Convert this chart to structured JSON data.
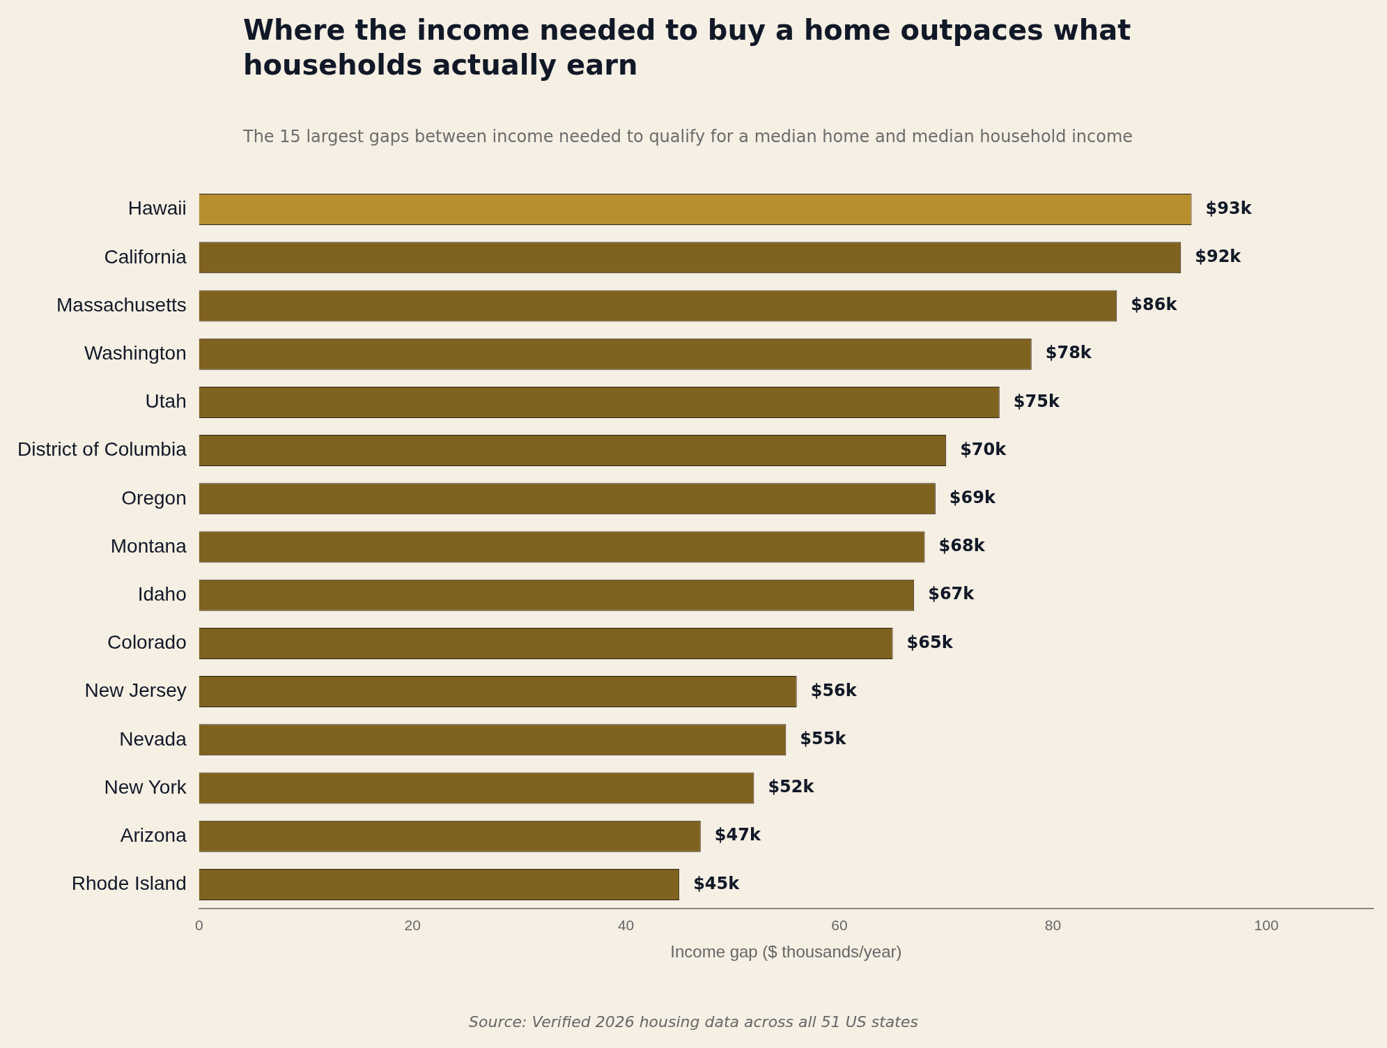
{
  "chart_data": {
    "type": "bar",
    "orientation": "horizontal",
    "title": "Where the income needed to buy a home outpaces what households actually earn",
    "subtitle": "The 15 largest gaps between income needed to qualify for a median home and median household income",
    "xlabel": "Income gap ($ thousands/year)",
    "annotations": [
      "Source: Verified 2026 housing data across all 51 US states"
    ],
    "categories": [
      "Hawaii",
      "California",
      "Massachusetts",
      "Washington",
      "Utah",
      "District of Columbia",
      "Oregon",
      "Montana",
      "Idaho",
      "Colorado",
      "New Jersey",
      "Nevada",
      "New York",
      "Arizona",
      "Rhode Island"
    ],
    "values": [
      93,
      92,
      86,
      78,
      75,
      70,
      69,
      68,
      67,
      65,
      56,
      55,
      52,
      47,
      45
    ],
    "value_labels": [
      "$93k",
      "$92k",
      "$86k",
      "$78k",
      "$75k",
      "$70k",
      "$69k",
      "$68k",
      "$67k",
      "$65k",
      "$56k",
      "$55k",
      "$52k",
      "$47k",
      "$45k"
    ],
    "colors": [
      "#b78f2f",
      "#80621f",
      "#80621f",
      "#80621f",
      "#80621f",
      "#80621f",
      "#80621f",
      "#80621f",
      "#80621f",
      "#80621f",
      "#80621f",
      "#80621f",
      "#80621f",
      "#80621f",
      "#80621f"
    ],
    "xlim": [
      0,
      110
    ],
    "xticks": [
      0,
      20,
      40,
      60,
      80,
      100
    ],
    "grid": false,
    "legend": false
  }
}
